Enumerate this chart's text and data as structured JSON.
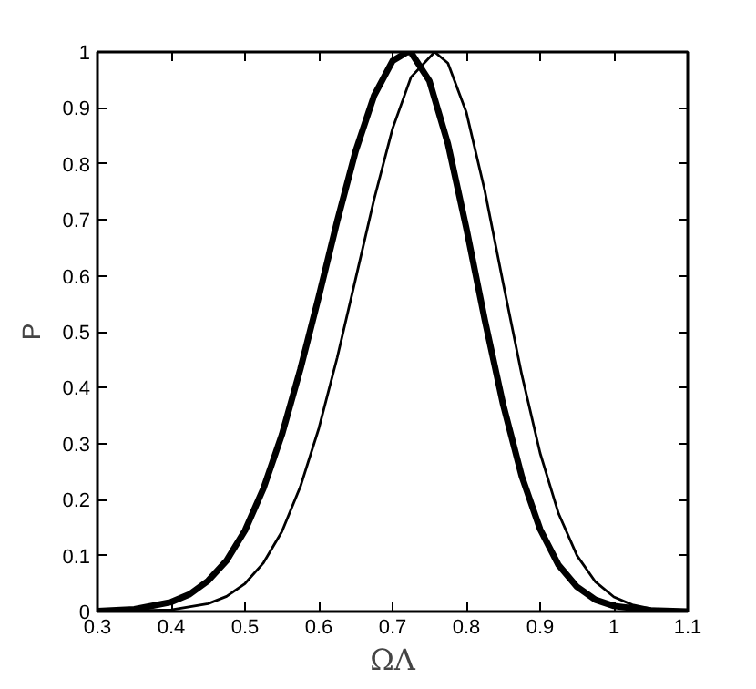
{
  "chart_data": {
    "type": "line",
    "xlabel": "ΩΛ",
    "ylabel": "P",
    "xlim": [
      0.3,
      1.1
    ],
    "ylim": [
      0,
      1
    ],
    "xticks": [
      0.3,
      0.4,
      0.5,
      0.6,
      0.7,
      0.8,
      0.9,
      1,
      1.1
    ],
    "yticks": [
      0,
      0.1,
      0.2,
      0.3,
      0.4,
      0.5,
      0.6,
      0.7,
      0.8,
      0.9,
      1
    ],
    "grid": false,
    "marker": "none",
    "line_style": "solid",
    "series": [
      {
        "color": "#000000",
        "x": [
          0.3,
          0.35,
          0.4,
          0.425,
          0.45,
          0.475,
          0.5,
          0.525,
          0.55,
          0.575,
          0.6,
          0.625,
          0.65,
          0.675,
          0.7,
          0.72,
          0.725,
          0.75,
          0.775,
          0.8,
          0.825,
          0.85,
          0.875,
          0.9,
          0.925,
          0.95,
          0.975,
          1.0,
          1.05,
          1.1
        ],
        "values": [
          0.001,
          0.004,
          0.017,
          0.031,
          0.055,
          0.091,
          0.145,
          0.22,
          0.316,
          0.433,
          0.563,
          0.698,
          0.823,
          0.922,
          0.984,
          1,
          0.999,
          0.948,
          0.836,
          0.685,
          0.521,
          0.369,
          0.242,
          0.147,
          0.083,
          0.044,
          0.021,
          0.01,
          0.002,
          0
        ]
      },
      {
        "color": "#000000",
        "x": [
          0.3,
          0.4,
          0.45,
          0.475,
          0.5,
          0.525,
          0.55,
          0.575,
          0.6,
          0.625,
          0.65,
          0.675,
          0.7,
          0.725,
          0.757,
          0.775,
          0.8,
          0.825,
          0.85,
          0.875,
          0.9,
          0.925,
          0.95,
          0.975,
          1.0,
          1.025,
          1.05,
          1.1
        ],
        "values": [
          0,
          0.003,
          0.014,
          0.027,
          0.05,
          0.087,
          0.143,
          0.223,
          0.327,
          0.454,
          0.595,
          0.737,
          0.863,
          0.955,
          1,
          0.98,
          0.892,
          0.752,
          0.586,
          0.424,
          0.283,
          0.175,
          0.1,
          0.053,
          0.026,
          0.012,
          0.005,
          0
        ]
      }
    ]
  }
}
